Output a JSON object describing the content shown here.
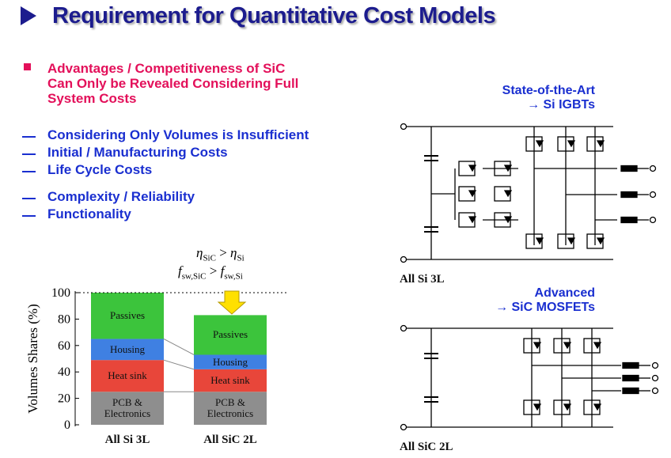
{
  "title": "Requirement for Quantitative Cost Models",
  "main_bullet": {
    "lines": [
      "Advantages / Competitiveness of SiC",
      "Can Only be Revealed Considering Full",
      "System Costs"
    ]
  },
  "items": [
    "Considering Only Volumes is Insufficient",
    "Initial / Manufacturing Costs",
    "Life Cycle Costs",
    "Complexity / Reliability",
    "Functionality"
  ],
  "formula": [
    {
      "lhs": "η",
      "lhs_sub": "SiC",
      "op": ">",
      "rhs": "η",
      "rhs_sub": "Si"
    },
    {
      "lhs": "f",
      "lhs_sub": "sw,SiC",
      "op": ">",
      "rhs": "f",
      "rhs_sub": "sw,Si"
    }
  ],
  "circuits": [
    {
      "heading": [
        "State-of-the-Art",
        "→ Si IGBTs"
      ],
      "label": "All Si 3L"
    },
    {
      "heading": [
        "Advanced",
        "→ SiC MOSFETs"
      ],
      "label": "All SiC 2L"
    }
  ],
  "chart_data": {
    "type": "stacked_bar",
    "ylabel": "Volumes Shares (%)",
    "categories": [
      "All Si 3L",
      "All SiC 2L"
    ],
    "series": [
      {
        "name": "PCB & Electronics",
        "color": "#8e8e8e",
        "values": [
          25,
          25
        ]
      },
      {
        "name": "Heat sink",
        "color": "#e8463a",
        "values": [
          24,
          17
        ]
      },
      {
        "name": "Housing",
        "color": "#3f80e2",
        "values": [
          16,
          11
        ]
      },
      {
        "name": "Passives",
        "color": "#3cc43c",
        "values": [
          35,
          30
        ]
      }
    ],
    "ylim": [
      0,
      100
    ],
    "yticks": [
      0,
      20,
      40,
      60,
      80,
      100
    ]
  }
}
